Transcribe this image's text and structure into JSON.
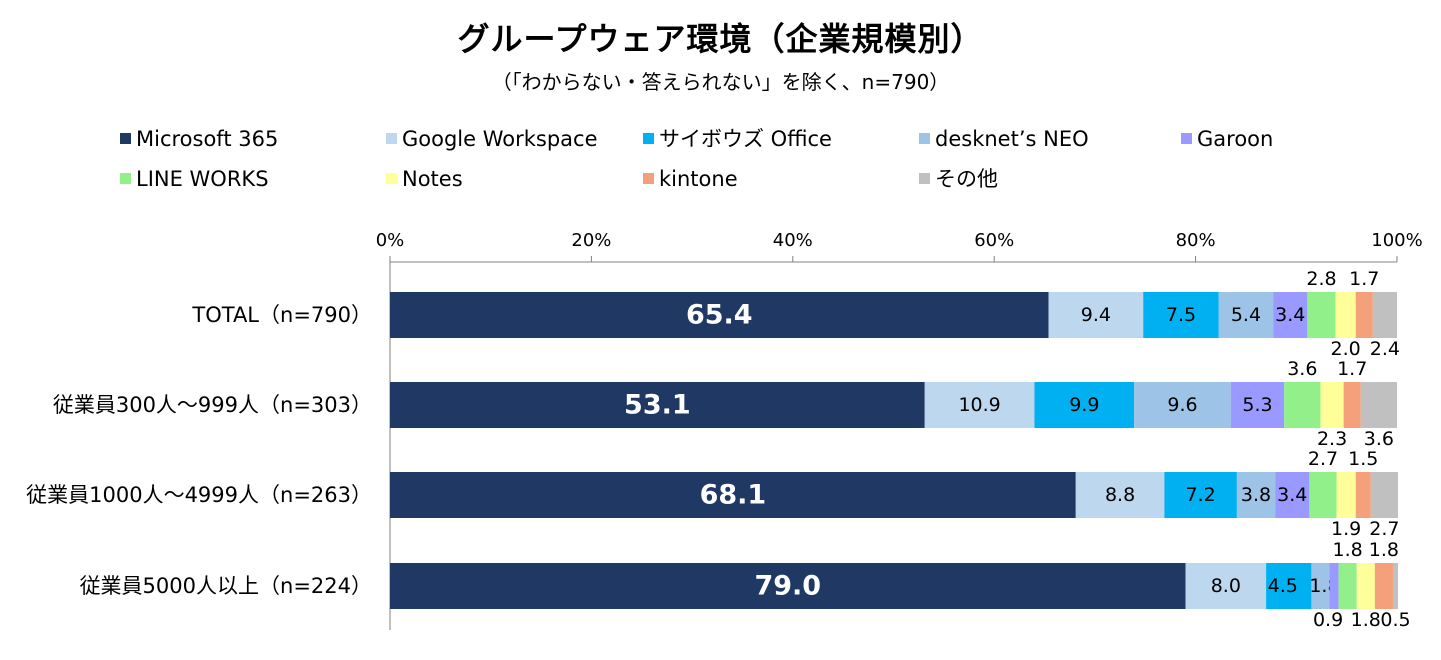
{
  "chart_data": {
    "type": "bar",
    "orientation": "horizontal",
    "stacked": true,
    "percent_stacked": true,
    "title": "グループウェア環境（企業規模別）",
    "subtitle": "（「わからない・答えられない」を除く、n=790）",
    "categories": [
      "TOTAL（n=790）",
      "従業員300人～999人（n=303）",
      "従業員1000人～4999人（n=263）",
      "従業員5000人以上（n=224）"
    ],
    "xlim": [
      0,
      100
    ],
    "x_ticks": [
      "0%",
      "20%",
      "40%",
      "60%",
      "80%",
      "100%"
    ],
    "legend_position": "top",
    "series": [
      {
        "name": "Microsoft 365",
        "color": "#203864",
        "values": [
          65.4,
          53.1,
          68.1,
          79.0
        ],
        "labels": [
          "65.4",
          "53.1",
          "68.1",
          "79.0"
        ]
      },
      {
        "name": "Google Workspace",
        "color": "#BDD7EE",
        "values": [
          9.4,
          10.9,
          8.8,
          8.0
        ],
        "labels": [
          "9.4",
          "10.9",
          "8.8",
          "8.0"
        ]
      },
      {
        "name": "サイボウズ Office",
        "color": "#00B0F0",
        "values": [
          7.5,
          9.9,
          7.2,
          4.5
        ],
        "labels": [
          "7.5",
          "9.9",
          "7.2",
          "4.5"
        ]
      },
      {
        "name": "desknet’s NEO",
        "color": "#9DC3E6",
        "values": [
          5.4,
          9.6,
          3.8,
          1.8
        ],
        "labels": [
          "5.4",
          "9.6",
          "3.8",
          "1.8"
        ]
      },
      {
        "name": "Garoon",
        "color": "#9999FF",
        "values": [
          3.4,
          5.3,
          3.4,
          0.9
        ],
        "labels": [
          "3.4",
          "5.3",
          "3.4",
          "0.9"
        ]
      },
      {
        "name": "LINE WORKS",
        "color": "#92F08A",
        "values": [
          2.8,
          3.6,
          2.7,
          1.8
        ],
        "labels": [
          "2.8",
          "3.6",
          "2.7",
          "1.8"
        ]
      },
      {
        "name": "Notes",
        "color": "#FFFF99",
        "values": [
          2.0,
          2.3,
          1.9,
          1.8
        ],
        "labels": [
          "2.0",
          "2.3",
          "1.9",
          "1.8"
        ]
      },
      {
        "name": "kintone",
        "color": "#F4A07A",
        "values": [
          1.7,
          1.7,
          1.5,
          1.8
        ],
        "labels": [
          "1.7",
          "1.7",
          "1.5",
          "1.8"
        ]
      },
      {
        "name": "その他",
        "color": "#C0C0C0",
        "values": [
          2.4,
          3.6,
          2.7,
          0.5
        ],
        "labels": [
          "2.4",
          "3.6",
          "2.7",
          "0.5"
        ]
      }
    ]
  }
}
